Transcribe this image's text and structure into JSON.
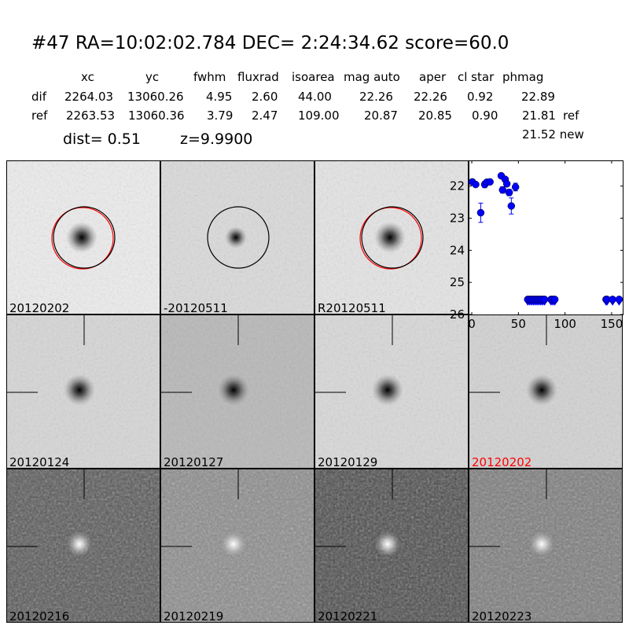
{
  "title": "#47   RA=10:02:02.784 DEC= 2:24:34.62      score=60.0",
  "table": {
    "columns": [
      "xc",
      "yc",
      "fwhm",
      "fluxrad",
      "isoarea",
      "mag auto",
      "aper",
      "cl star",
      "phmag"
    ],
    "rows": [
      {
        "label": "dif",
        "values": [
          "2264.03",
          "13060.26",
          "4.95",
          "2.60",
          "44.00",
          "22.26",
          "22.26",
          "0.92",
          "22.89"
        ],
        "extra": ""
      },
      {
        "label": "ref",
        "values": [
          "2263.53",
          "13060.36",
          "3.79",
          "2.47",
          "109.00",
          "20.87",
          "20.85",
          "0.90",
          "21.81"
        ],
        "extra": "ref"
      }
    ],
    "new_phmag": "21.52 new"
  },
  "dist": "dist=  0.51",
  "z": "z=9.9900",
  "stamps": [
    {
      "label": "20120202",
      "bg": "#ececec",
      "star": "dark",
      "circle": true,
      "red": true
    },
    {
      "label": "-20120511",
      "bg": "#dadada",
      "star": "dark",
      "circle": true,
      "red": false
    },
    {
      "label": "R20120511",
      "bg": "#e4e4e4",
      "star": "dark",
      "circle": true,
      "red": true
    },
    null,
    {
      "label": "20120124",
      "bg": "#d6d6d6",
      "star": "dark",
      "cross": true
    },
    {
      "label": "20120127",
      "bg": "#b8b8b8",
      "star": "dark",
      "cross": true
    },
    {
      "label": "20120129",
      "bg": "#d8d8d8",
      "star": "dark",
      "cross": true
    },
    {
      "label": "20120202",
      "bg": "#d2d2d2",
      "star": "dark",
      "cross": true,
      "labelColor": "#ff0000"
    },
    {
      "label": "20120216",
      "bg": "#555555",
      "star": "bright",
      "cross": true
    },
    {
      "label": "20120219",
      "bg": "#8a8a8a",
      "star": "bright",
      "cross": true
    },
    {
      "label": "20120221",
      "bg": "#484848",
      "star": "bright",
      "cross": true
    },
    {
      "label": "20120223",
      "bg": "#7a7a7a",
      "star": "bright",
      "cross": true
    }
  ],
  "chart_data": {
    "type": "scatter",
    "xlim": [
      -3.4,
      162.7
    ],
    "ylim": [
      26,
      21.2
    ],
    "y_inverted": true,
    "xticks": [
      0,
      50,
      100,
      150
    ],
    "yticks": [
      22,
      23,
      24,
      25,
      26
    ],
    "marker_color": "#0000ff",
    "points": [
      {
        "x": 0.6,
        "y": 21.87,
        "err": 0.05
      },
      {
        "x": 4.2,
        "y": 21.95,
        "err": 0.05
      },
      {
        "x": 9.6,
        "y": 22.83,
        "err": 0.3
      },
      {
        "x": 13.9,
        "y": 21.95,
        "err": 0.1
      },
      {
        "x": 16.1,
        "y": 21.88,
        "err": 0.05
      },
      {
        "x": 19.5,
        "y": 21.87,
        "err": 0.05
      },
      {
        "x": 31.6,
        "y": 21.68,
        "err": 0.03
      },
      {
        "x": 35.8,
        "y": 21.79,
        "err": 0.05
      },
      {
        "x": 33.1,
        "y": 22.12,
        "err": 0.1
      },
      {
        "x": 37.6,
        "y": 21.93,
        "err": 0.05
      },
      {
        "x": 40.1,
        "y": 22.2,
        "err": 0.1
      },
      {
        "x": 42.4,
        "y": 22.62,
        "err": 0.25
      },
      {
        "x": 46.9,
        "y": 22.03,
        "err": 0.12
      }
    ],
    "limits": {
      "y": 25.53,
      "x": [
        60,
        62,
        64,
        66,
        68,
        70,
        72,
        74,
        76,
        78,
        85,
        87,
        89,
        144,
        145,
        151,
        158
      ]
    }
  }
}
